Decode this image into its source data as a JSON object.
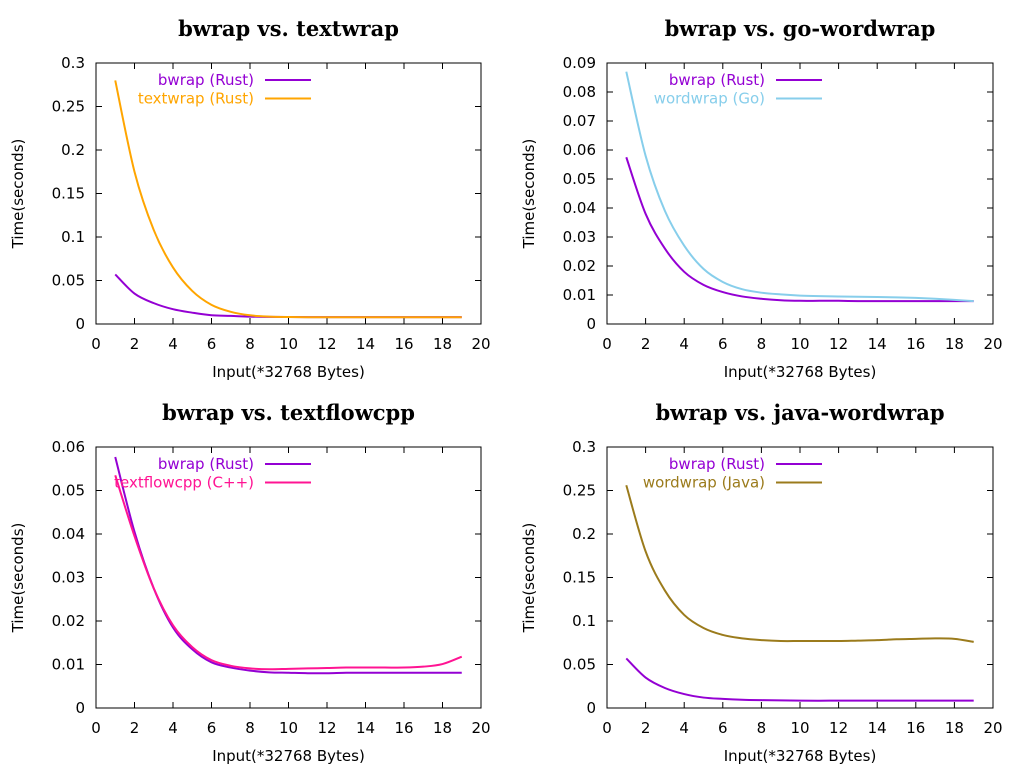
{
  "chart_data": [
    {
      "type": "line",
      "title": "bwrap vs. textwrap",
      "xlabel": "Input(*32768 Bytes)",
      "ylabel": "Time(seconds)",
      "xlim": [
        0,
        20
      ],
      "ylim": [
        0,
        0.3
      ],
      "xticks": [
        "0",
        "2",
        "4",
        "6",
        "8",
        "10",
        "12",
        "14",
        "16",
        "18",
        "20"
      ],
      "yticks": [
        "0",
        "0.05",
        "0.1",
        "0.15",
        "0.2",
        "0.25",
        "0.3"
      ],
      "grid": false,
      "legend": "top-left",
      "series": [
        {
          "name": "bwrap (Rust)",
          "color": "#9400d3",
          "x": [
            1,
            2,
            3,
            4,
            5,
            6,
            7,
            8,
            9,
            10,
            11,
            12,
            13,
            14,
            15,
            16,
            17,
            18,
            19
          ],
          "y": [
            0.057,
            0.035,
            0.024,
            0.017,
            0.013,
            0.01,
            0.0093,
            0.0085,
            0.0082,
            0.008,
            0.0079,
            0.0079,
            0.0079,
            0.0079,
            0.0079,
            0.0079,
            0.0079,
            0.0079,
            0.0079
          ]
        },
        {
          "name": "textwrap (Rust)",
          "color": "#ffa500",
          "x": [
            1,
            2,
            3,
            4,
            5,
            6,
            7,
            8,
            9,
            10,
            11,
            12,
            13,
            14,
            15,
            16,
            17,
            18,
            19
          ],
          "y": [
            0.28,
            0.175,
            0.108,
            0.065,
            0.038,
            0.022,
            0.014,
            0.01,
            0.0085,
            0.008,
            0.0078,
            0.0078,
            0.0078,
            0.0078,
            0.0078,
            0.0078,
            0.0078,
            0.0078,
            0.0078
          ]
        }
      ]
    },
    {
      "type": "line",
      "title": "bwrap vs. go-wordwrap",
      "xlabel": "Input(*32768 Bytes)",
      "ylabel": "Time(seconds)",
      "xlim": [
        0,
        20
      ],
      "ylim": [
        0,
        0.09
      ],
      "xticks": [
        "0",
        "2",
        "4",
        "6",
        "8",
        "10",
        "12",
        "14",
        "16",
        "18",
        "20"
      ],
      "yticks": [
        "0",
        "0.01",
        "0.02",
        "0.03",
        "0.04",
        "0.05",
        "0.06",
        "0.07",
        "0.08",
        "0.09"
      ],
      "grid": false,
      "legend": "top-left",
      "series": [
        {
          "name": "bwrap (Rust)",
          "color": "#9400d3",
          "x": [
            1,
            2,
            3,
            4,
            5,
            6,
            7,
            8,
            9,
            10,
            11,
            12,
            13,
            14,
            15,
            16,
            17,
            18,
            19
          ],
          "y": [
            0.0575,
            0.038,
            0.026,
            0.018,
            0.0135,
            0.011,
            0.0095,
            0.0087,
            0.0082,
            0.008,
            0.008,
            0.008,
            0.0079,
            0.0079,
            0.0079,
            0.0079,
            0.0079,
            0.0079,
            0.0079
          ]
        },
        {
          "name": "wordwrap (Go)",
          "color": "#87ceeb",
          "x": [
            1,
            2,
            3,
            4,
            5,
            6,
            7,
            8,
            9,
            10,
            11,
            12,
            13,
            14,
            15,
            16,
            17,
            18,
            19
          ],
          "y": [
            0.087,
            0.058,
            0.039,
            0.027,
            0.019,
            0.0145,
            0.012,
            0.0108,
            0.0102,
            0.0098,
            0.0096,
            0.0095,
            0.0094,
            0.0093,
            0.0092,
            0.009,
            0.0087,
            0.0083,
            0.0079
          ]
        }
      ]
    },
    {
      "type": "line",
      "title": "bwrap vs. textflowcpp",
      "xlabel": "Input(*32768 Bytes)",
      "ylabel": "Time(seconds)",
      "xlim": [
        0,
        20
      ],
      "ylim": [
        0,
        0.06
      ],
      "xticks": [
        "0",
        "2",
        "4",
        "6",
        "8",
        "10",
        "12",
        "14",
        "16",
        "18",
        "20"
      ],
      "yticks": [
        "0",
        "0.01",
        "0.02",
        "0.03",
        "0.04",
        "0.05",
        "0.06"
      ],
      "grid": false,
      "legend": "top-left",
      "series": [
        {
          "name": "bwrap (Rust)",
          "color": "#9400d3",
          "x": [
            1,
            2,
            3,
            4,
            5,
            6,
            7,
            8,
            9,
            10,
            11,
            12,
            13,
            14,
            15,
            16,
            17,
            18,
            19
          ],
          "y": [
            0.0577,
            0.0405,
            0.0275,
            0.0185,
            0.0135,
            0.0105,
            0.0093,
            0.0086,
            0.0082,
            0.0081,
            0.008,
            0.008,
            0.0081,
            0.0081,
            0.0081,
            0.0081,
            0.0081,
            0.0081,
            0.0081
          ]
        },
        {
          "name": "textflowcpp (C++)",
          "color": "#ff1493",
          "x": [
            1,
            2,
            3,
            4,
            5,
            6,
            7,
            8,
            9,
            10,
            11,
            12,
            13,
            14,
            15,
            16,
            17,
            18,
            19
          ],
          "y": [
            0.0535,
            0.0395,
            0.0275,
            0.019,
            0.014,
            0.011,
            0.0097,
            0.0091,
            0.0089,
            0.009,
            0.0091,
            0.0092,
            0.0093,
            0.0093,
            0.0093,
            0.0093,
            0.0095,
            0.0101,
            0.0118
          ]
        }
      ]
    },
    {
      "type": "line",
      "title": "bwrap vs. java-wordwrap",
      "xlabel": "Input(*32768 Bytes)",
      "ylabel": "Time(seconds)",
      "xlim": [
        0,
        20
      ],
      "ylim": [
        0,
        0.3
      ],
      "xticks": [
        "0",
        "2",
        "4",
        "6",
        "8",
        "10",
        "12",
        "14",
        "16",
        "18",
        "20"
      ],
      "yticks": [
        "0",
        "0.05",
        "0.1",
        "0.15",
        "0.2",
        "0.25",
        "0.3"
      ],
      "grid": false,
      "legend": "top-left",
      "series": [
        {
          "name": "bwrap (Rust)",
          "color": "#9400d3",
          "x": [
            1,
            2,
            3,
            4,
            5,
            6,
            7,
            8,
            9,
            10,
            11,
            12,
            13,
            14,
            15,
            16,
            17,
            18,
            19
          ],
          "y": [
            0.057,
            0.035,
            0.023,
            0.016,
            0.012,
            0.0105,
            0.0095,
            0.009,
            0.0087,
            0.0085,
            0.0084,
            0.0085,
            0.0085,
            0.0085,
            0.0085,
            0.0085,
            0.0085,
            0.0085,
            0.0085
          ]
        },
        {
          "name": "wordwrap (Java)",
          "color": "#9b7b1c",
          "x": [
            1,
            2,
            3,
            4,
            5,
            6,
            7,
            8,
            9,
            10,
            11,
            12,
            13,
            14,
            15,
            16,
            17,
            18,
            19
          ],
          "y": [
            0.256,
            0.18,
            0.135,
            0.107,
            0.092,
            0.084,
            0.08,
            0.078,
            0.077,
            0.077,
            0.077,
            0.077,
            0.0775,
            0.078,
            0.079,
            0.0795,
            0.08,
            0.0795,
            0.076
          ]
        }
      ]
    }
  ]
}
